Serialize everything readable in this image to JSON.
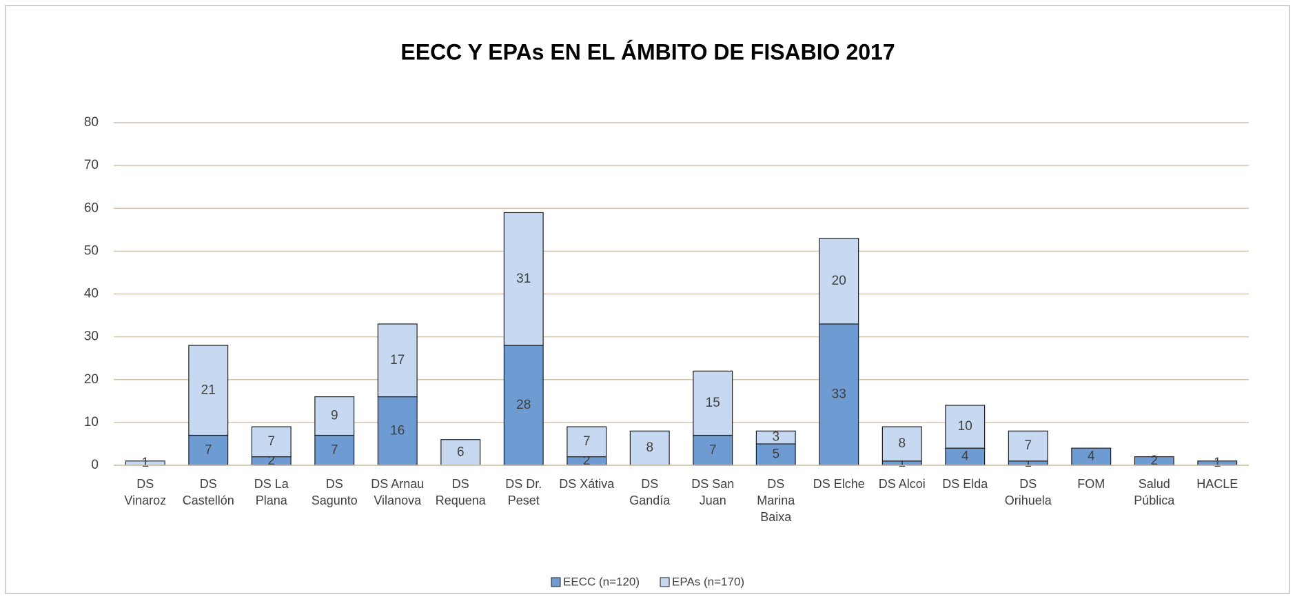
{
  "chart_data": {
    "type": "stacked_bar",
    "title": "EECC Y EPAs EN EL ÁMBITO DE FISABIO 2017",
    "categories": [
      "DS Vinaroz",
      "DS Castellón",
      "DS La Plana",
      "DS Sagunto",
      "DS Arnau Vilanova",
      "DS Requena",
      "DS Dr. Peset",
      "DS Xátiva",
      "DS Gandía",
      "DS San Juan",
      "DS Marina Baixa",
      "DS Elche",
      "DS Alcoi",
      "DS Elda",
      "DS Orihuela",
      "FOM",
      "Salud Pública",
      "HACLE"
    ],
    "series": [
      {
        "name": "EECC (n=120)",
        "color": "#6f9bd3",
        "values": [
          null,
          7,
          2,
          7,
          16,
          null,
          28,
          2,
          null,
          7,
          5,
          33,
          1,
          4,
          1,
          4,
          2,
          1
        ]
      },
      {
        "name": "EPAs (n=170)",
        "color": "#c6d9f0",
        "values": [
          1,
          21,
          7,
          9,
          17,
          6,
          31,
          7,
          8,
          15,
          3,
          20,
          8,
          10,
          7,
          null,
          null,
          null
        ]
      }
    ],
    "ylim": [
      0,
      80
    ],
    "yticks": [
      0,
      10,
      20,
      30,
      40,
      50,
      60,
      70,
      80
    ],
    "grid": true,
    "legend": "bottom"
  }
}
